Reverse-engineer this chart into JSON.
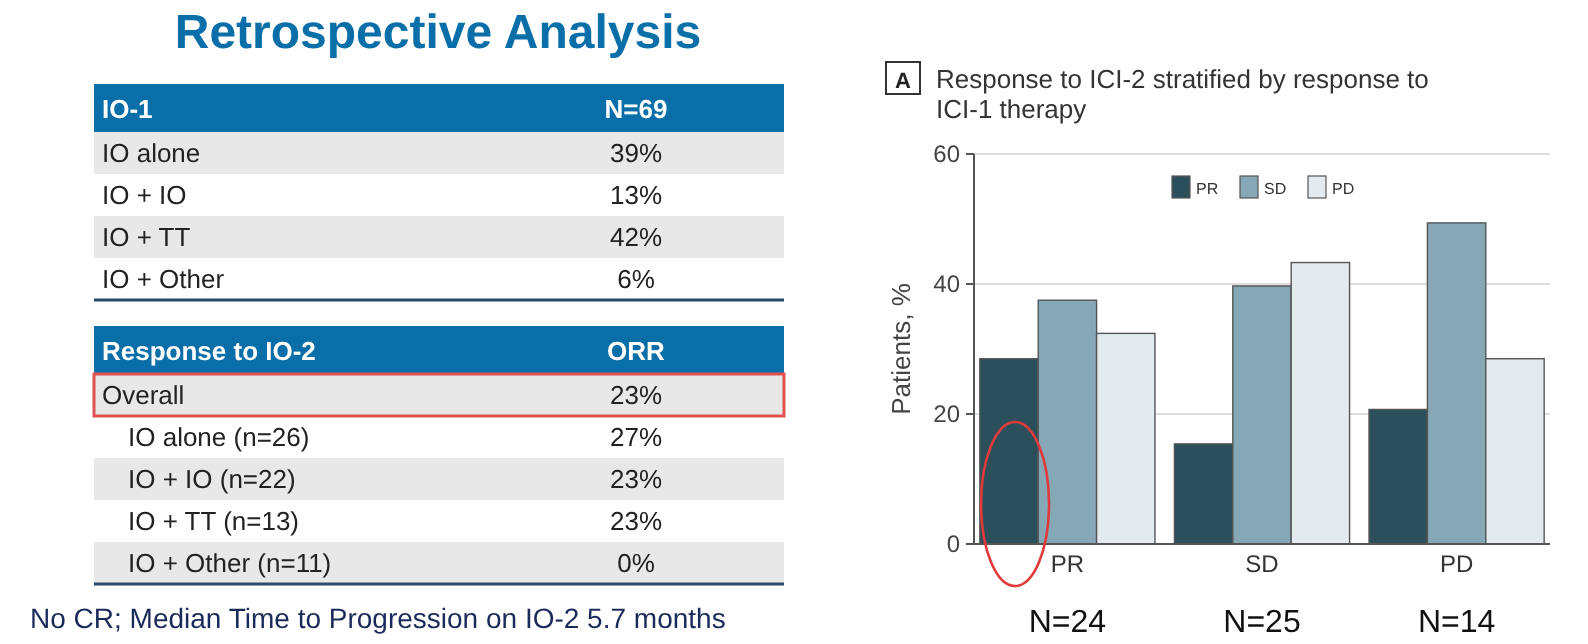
{
  "chart_data": [
    {
      "type": "other",
      "title": "Retrospective Analysis",
      "annotations": [
        "IO-1",
        "N=69"
      ],
      "categories": [
        "IO alone",
        "IO + IO",
        "IO + TT",
        "IO + Other"
      ],
      "value_labels": [
        "39%",
        "13%",
        "42%",
        "6%"
      ]
    },
    {
      "type": "other",
      "annotations": [
        "Response to IO-2",
        "ORR",
        "No CR; Median Time to Progression on IO-2 5.7 months"
      ],
      "categories": [
        "Overall",
        "IO alone (n=26)",
        "IO + IO (n=22)",
        "IO + TT (n=13)",
        "IO + Other (n=11)"
      ],
      "value_labels": [
        "23%",
        "27%",
        "23%",
        "23%",
        "0%"
      ]
    },
    {
      "type": "bar",
      "title": "Response to ICI-2 stratified by response to ICI-1 therapy",
      "ylabel": "Patients, %",
      "categories": [
        "PR",
        "SD",
        "PD"
      ],
      "ylim": [
        0,
        60
      ],
      "yticks": [
        0,
        20,
        40,
        60
      ],
      "grid": "y",
      "legend": "top",
      "annotations": [
        "A",
        "N=24",
        "N=25",
        "N=14"
      ],
      "series": [
        {
          "name": "PR",
          "color": "#2c4f5c",
          "values": [
            28.5,
            15.4,
            20.7
          ]
        },
        {
          "name": "SD",
          "color": "#86a8b6",
          "values": [
            37.5,
            39.7,
            49.4
          ]
        },
        {
          "name": "PD",
          "color": "#e3ebef",
          "values": [
            32.4,
            43.3,
            28.5
          ]
        }
      ]
    }
  ]
}
